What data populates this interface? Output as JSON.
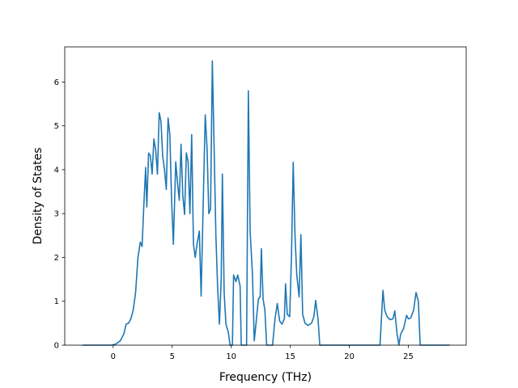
{
  "chart_data": {
    "type": "line",
    "title": "",
    "xlabel": "Frequency (THz)",
    "ylabel": "Density of States",
    "xlim": [
      -4.1,
      29.9
    ],
    "ylim": [
      0,
      6.8
    ],
    "grid": false,
    "x_ticks": [
      "0",
      "5",
      "10",
      "15",
      "20",
      "25"
    ],
    "y_ticks": [
      "0",
      "1",
      "2",
      "3",
      "4",
      "5",
      "6"
    ],
    "series": [
      {
        "color": "#1f77b4",
        "points": [
          [
            -2.6,
            0
          ],
          [
            -0.2,
            0
          ],
          [
            0.2,
            0.02
          ],
          [
            0.6,
            0.1
          ],
          [
            0.9,
            0.25
          ],
          [
            1.1,
            0.48
          ],
          [
            1.3,
            0.5
          ],
          [
            1.5,
            0.6
          ],
          [
            1.7,
            0.8
          ],
          [
            1.9,
            1.2
          ],
          [
            2.1,
            2.0
          ],
          [
            2.3,
            2.35
          ],
          [
            2.45,
            2.25
          ],
          [
            2.6,
            3.2
          ],
          [
            2.75,
            4.05
          ],
          [
            2.85,
            3.15
          ],
          [
            3.0,
            4.38
          ],
          [
            3.15,
            4.32
          ],
          [
            3.3,
            3.9
          ],
          [
            3.45,
            4.7
          ],
          [
            3.6,
            4.45
          ],
          [
            3.75,
            3.9
          ],
          [
            3.9,
            5.3
          ],
          [
            4.05,
            5.1
          ],
          [
            4.2,
            4.3
          ],
          [
            4.35,
            4.0
          ],
          [
            4.5,
            3.55
          ],
          [
            4.65,
            5.18
          ],
          [
            4.8,
            4.8
          ],
          [
            4.95,
            3.3
          ],
          [
            5.1,
            2.3
          ],
          [
            5.3,
            4.18
          ],
          [
            5.45,
            3.7
          ],
          [
            5.6,
            3.3
          ],
          [
            5.75,
            4.58
          ],
          [
            5.9,
            3.4
          ],
          [
            6.05,
            2.98
          ],
          [
            6.2,
            4.38
          ],
          [
            6.35,
            4.18
          ],
          [
            6.5,
            3.0
          ],
          [
            6.65,
            4.8
          ],
          [
            6.8,
            2.3
          ],
          [
            6.95,
            2.0
          ],
          [
            7.1,
            2.3
          ],
          [
            7.3,
            2.6
          ],
          [
            7.45,
            1.12
          ],
          [
            7.65,
            3.5
          ],
          [
            7.8,
            5.25
          ],
          [
            7.95,
            4.5
          ],
          [
            8.1,
            3.0
          ],
          [
            8.25,
            3.1
          ],
          [
            8.4,
            6.48
          ],
          [
            8.55,
            4.5
          ],
          [
            8.7,
            2.5
          ],
          [
            8.85,
            1.3
          ],
          [
            9.0,
            0.48
          ],
          [
            9.15,
            1.5
          ],
          [
            9.25,
            3.9
          ],
          [
            9.4,
            1.2
          ],
          [
            9.55,
            0.48
          ],
          [
            9.75,
            0.3
          ],
          [
            9.9,
            0
          ],
          [
            10.1,
            0
          ],
          [
            10.2,
            1.6
          ],
          [
            10.4,
            1.45
          ],
          [
            10.55,
            1.6
          ],
          [
            10.75,
            1.35
          ],
          [
            10.85,
            0
          ],
          [
            11.1,
            0
          ],
          [
            11.3,
            0
          ],
          [
            11.45,
            5.8
          ],
          [
            11.6,
            2.6
          ],
          [
            11.8,
            1.6
          ],
          [
            11.95,
            0.1
          ],
          [
            12.1,
            0.5
          ],
          [
            12.3,
            1.05
          ],
          [
            12.45,
            1.1
          ],
          [
            12.55,
            2.2
          ],
          [
            12.7,
            1.05
          ],
          [
            12.85,
            0.8
          ],
          [
            13.0,
            0
          ],
          [
            13.5,
            0
          ],
          [
            13.7,
            0.58
          ],
          [
            13.9,
            0.95
          ],
          [
            14.1,
            0.55
          ],
          [
            14.3,
            0.48
          ],
          [
            14.5,
            0.6
          ],
          [
            14.6,
            1.4
          ],
          [
            14.75,
            0.7
          ],
          [
            14.95,
            0.65
          ],
          [
            15.1,
            2.0
          ],
          [
            15.25,
            4.17
          ],
          [
            15.4,
            2.5
          ],
          [
            15.55,
            1.6
          ],
          [
            15.75,
            1.1
          ],
          [
            15.9,
            2.52
          ],
          [
            16.05,
            0.7
          ],
          [
            16.25,
            0.5
          ],
          [
            16.5,
            0.45
          ],
          [
            16.8,
            0.5
          ],
          [
            17.0,
            0.65
          ],
          [
            17.15,
            1.02
          ],
          [
            17.35,
            0.6
          ],
          [
            17.5,
            0
          ],
          [
            22.6,
            0
          ],
          [
            22.85,
            1.25
          ],
          [
            23.0,
            0.8
          ],
          [
            23.2,
            0.65
          ],
          [
            23.45,
            0.58
          ],
          [
            23.7,
            0.6
          ],
          [
            23.85,
            0.78
          ],
          [
            24.05,
            0.25
          ],
          [
            24.2,
            0
          ],
          [
            24.35,
            0.25
          ],
          [
            24.6,
            0.38
          ],
          [
            24.85,
            0.68
          ],
          [
            25.0,
            0.6
          ],
          [
            25.2,
            0.62
          ],
          [
            25.45,
            0.8
          ],
          [
            25.65,
            1.2
          ],
          [
            25.85,
            1.0
          ],
          [
            26.0,
            0
          ],
          [
            28.5,
            0
          ]
        ]
      }
    ]
  }
}
